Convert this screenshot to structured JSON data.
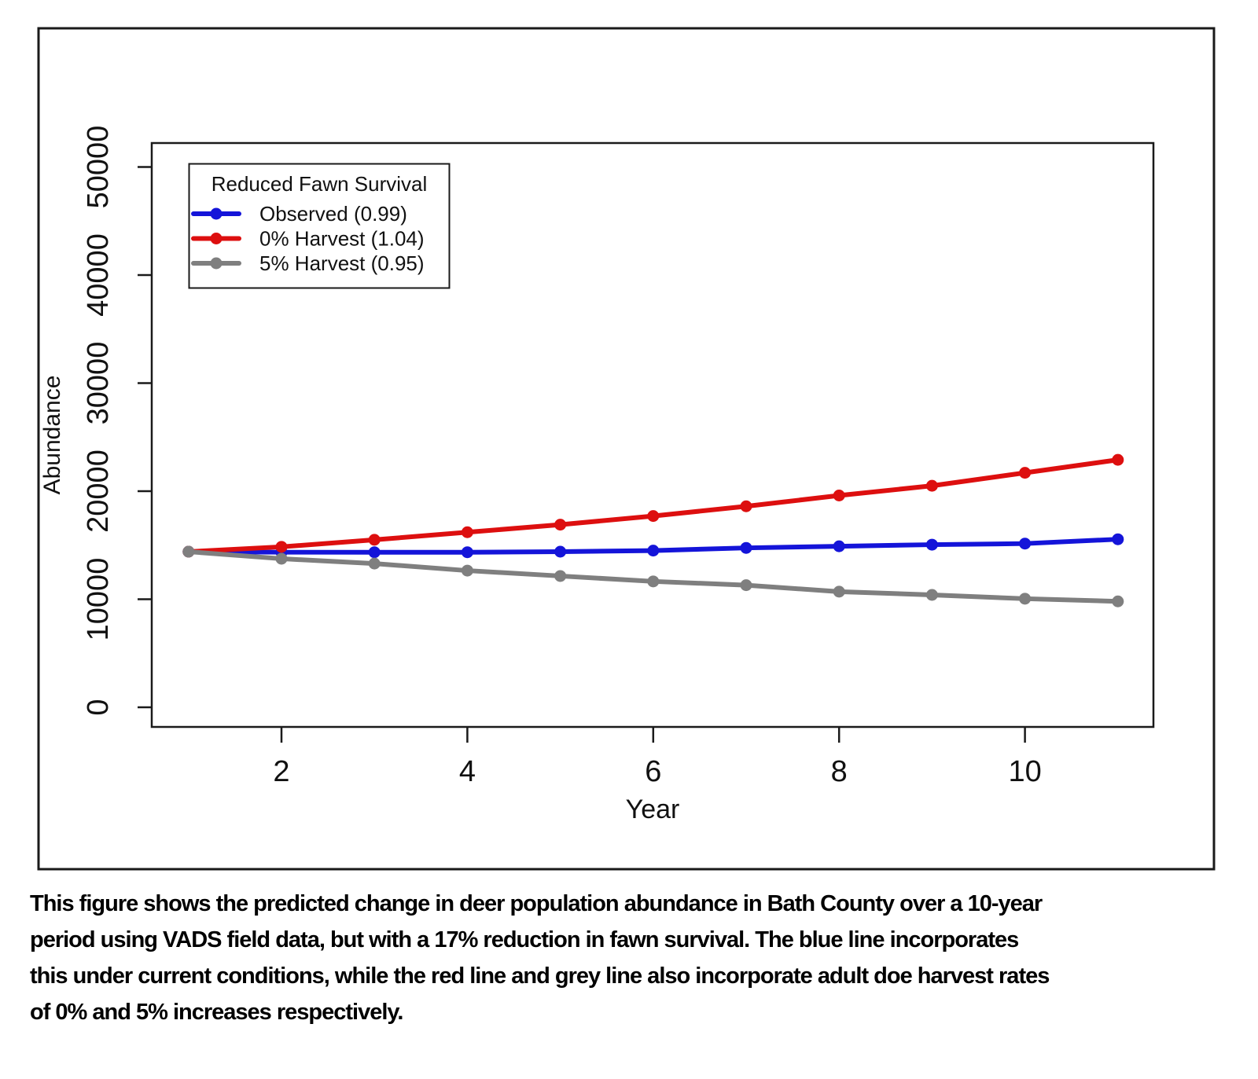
{
  "figure": {
    "caption": "This figure shows the predicted change in deer population abundance in Bath County over a 10-year\nperiod using VADS field data, but with a 17% reduction in fawn survival. The blue line incorporates\nthis under current conditions, while the red line and grey line also incorporate adult doe harvest rates\nof 0% and 5% increases respectively."
  },
  "chart_data": {
    "type": "line",
    "title": "",
    "xlabel": "Year",
    "ylabel": "Abundance",
    "xlim": [
      1,
      11
    ],
    "ylim": [
      0,
      50000
    ],
    "x_ticks": [
      2,
      4,
      6,
      8,
      10
    ],
    "y_ticks": [
      0,
      10000,
      20000,
      30000,
      40000,
      50000
    ],
    "grid": false,
    "marker": "circle",
    "axis_color": "#1a1a1a",
    "text_color": "#111111",
    "legend": {
      "title": "Reduced Fawn Survival",
      "position": "top-left",
      "entries": [
        {
          "label": "Observed (0.99)",
          "color": "#1414d9"
        },
        {
          "label": "0% Harvest (1.04)",
          "color": "#dd0f0f"
        },
        {
          "label": "5% Harvest (0.95)",
          "color": "#7f7f7f"
        }
      ]
    },
    "x": [
      1,
      2,
      3,
      4,
      5,
      6,
      7,
      8,
      9,
      10,
      11
    ],
    "series": [
      {
        "name": "Observed (0.99)",
        "color": "#1414d9",
        "values": [
          14400,
          14350,
          14350,
          14350,
          14400,
          14500,
          14750,
          14900,
          15050,
          15150,
          15550
        ]
      },
      {
        "name": "0% Harvest (1.04)",
        "color": "#dd0f0f",
        "values": [
          14400,
          14850,
          15500,
          16200,
          16900,
          17700,
          18600,
          19600,
          20500,
          21700,
          22900
        ]
      },
      {
        "name": "5% Harvest (0.95)",
        "color": "#7f7f7f",
        "values": [
          14400,
          13750,
          13300,
          12650,
          12150,
          11650,
          11300,
          10700,
          10400,
          10050,
          9800
        ]
      }
    ]
  }
}
